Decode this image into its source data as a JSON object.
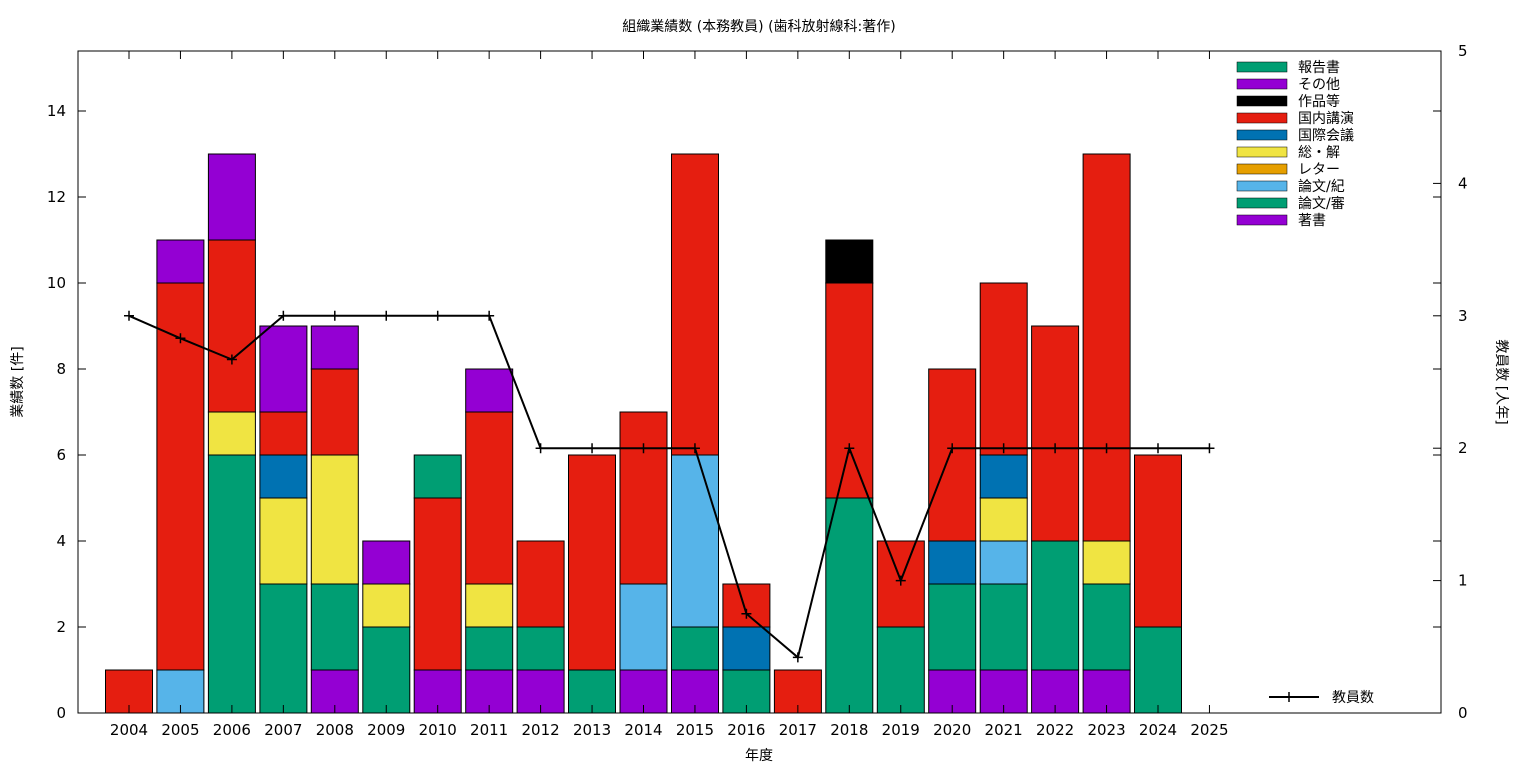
{
  "chart_data": {
    "type": "bar",
    "title": "組織業績数 (本務教員) (歯科放射線科:著作)",
    "xlabel": "年度",
    "ylabel": "業績数 [件]",
    "y2label": "教員数 [人年]",
    "ylim": [
      0,
      15.4
    ],
    "y2lim": [
      0,
      5
    ],
    "yticks": [
      0,
      2,
      4,
      6,
      8,
      10,
      12,
      14
    ],
    "y2ticks": [
      0,
      1,
      2,
      3,
      4,
      5
    ],
    "grid": false,
    "legend_position": "top-right",
    "categories": [
      "2004",
      "2005",
      "2006",
      "2007",
      "2008",
      "2009",
      "2010",
      "2011",
      "2012",
      "2013",
      "2014",
      "2015",
      "2016",
      "2017",
      "2018",
      "2019",
      "2020",
      "2021",
      "2022",
      "2023",
      "2024",
      "2025"
    ],
    "series": [
      {
        "name": "著書",
        "color": "#9400d3",
        "values": [
          0,
          0,
          0,
          0,
          1,
          0,
          1,
          1,
          1,
          0,
          1,
          1,
          0,
          0,
          0,
          0,
          1,
          1,
          1,
          1,
          0,
          0
        ]
      },
      {
        "name": "論文/審",
        "color": "#009e73",
        "values": [
          0,
          0,
          6,
          3,
          2,
          2,
          0,
          1,
          1,
          1,
          0,
          1,
          1,
          0,
          5,
          2,
          2,
          2,
          3,
          2,
          2,
          0
        ]
      },
      {
        "name": "論文/紀",
        "color": "#56b4e9",
        "values": [
          0,
          1,
          0,
          0,
          0,
          0,
          0,
          0,
          0,
          0,
          2,
          4,
          0,
          0,
          0,
          0,
          0,
          1,
          0,
          0,
          0,
          0
        ]
      },
      {
        "name": "レター",
        "color": "#e69f00",
        "values": [
          0,
          0,
          0,
          0,
          0,
          0,
          0,
          0,
          0,
          0,
          0,
          0,
          0,
          0,
          0,
          0,
          0,
          0,
          0,
          0,
          0,
          0
        ]
      },
      {
        "name": "総・解",
        "color": "#f0e442",
        "values": [
          0,
          0,
          1,
          2,
          3,
          1,
          0,
          1,
          0,
          0,
          0,
          0,
          0,
          0,
          0,
          0,
          0,
          1,
          0,
          1,
          0,
          0
        ]
      },
      {
        "name": "国際会議",
        "color": "#0072b2",
        "values": [
          0,
          0,
          0,
          1,
          0,
          0,
          0,
          0,
          0,
          0,
          0,
          0,
          1,
          0,
          0,
          0,
          1,
          1,
          0,
          0,
          0,
          0
        ]
      },
      {
        "name": "国内講演",
        "color": "#e51e10",
        "values": [
          1,
          9,
          4,
          1,
          2,
          0,
          4,
          4,
          2,
          5,
          4,
          7,
          1,
          1,
          5,
          2,
          4,
          4,
          5,
          9,
          4,
          0
        ]
      },
      {
        "name": "作品等",
        "color": "#000000",
        "values": [
          0,
          0,
          0,
          0,
          0,
          0,
          0,
          0,
          0,
          0,
          0,
          0,
          0,
          0,
          1,
          0,
          0,
          0,
          0,
          0,
          0,
          0
        ]
      },
      {
        "name": "その他",
        "color": "#9400d3",
        "values": [
          0,
          1,
          2,
          2,
          1,
          1,
          0,
          1,
          0,
          0,
          0,
          0,
          0,
          0,
          0,
          0,
          0,
          0,
          0,
          0,
          0,
          0
        ]
      },
      {
        "name": "報告書",
        "color": "#009e73",
        "values": [
          0,
          0,
          0,
          0,
          0,
          0,
          1,
          0,
          0,
          0,
          0,
          0,
          0,
          0,
          0,
          0,
          0,
          0,
          0,
          0,
          0,
          0
        ]
      }
    ],
    "legend_order": [
      "報告書",
      "その他",
      "作品等",
      "国内講演",
      "国際会議",
      "総・解",
      "レター",
      "論文/紀",
      "論文/審",
      "著書"
    ],
    "line_series": {
      "name": "教員数",
      "axis": "y2",
      "color": "#000000",
      "values": [
        3,
        2.83,
        2.67,
        3,
        3,
        3,
        3,
        3,
        2,
        2,
        2,
        2,
        0.75,
        0.42,
        2,
        1,
        2,
        2,
        2,
        2,
        2,
        2
      ]
    }
  }
}
